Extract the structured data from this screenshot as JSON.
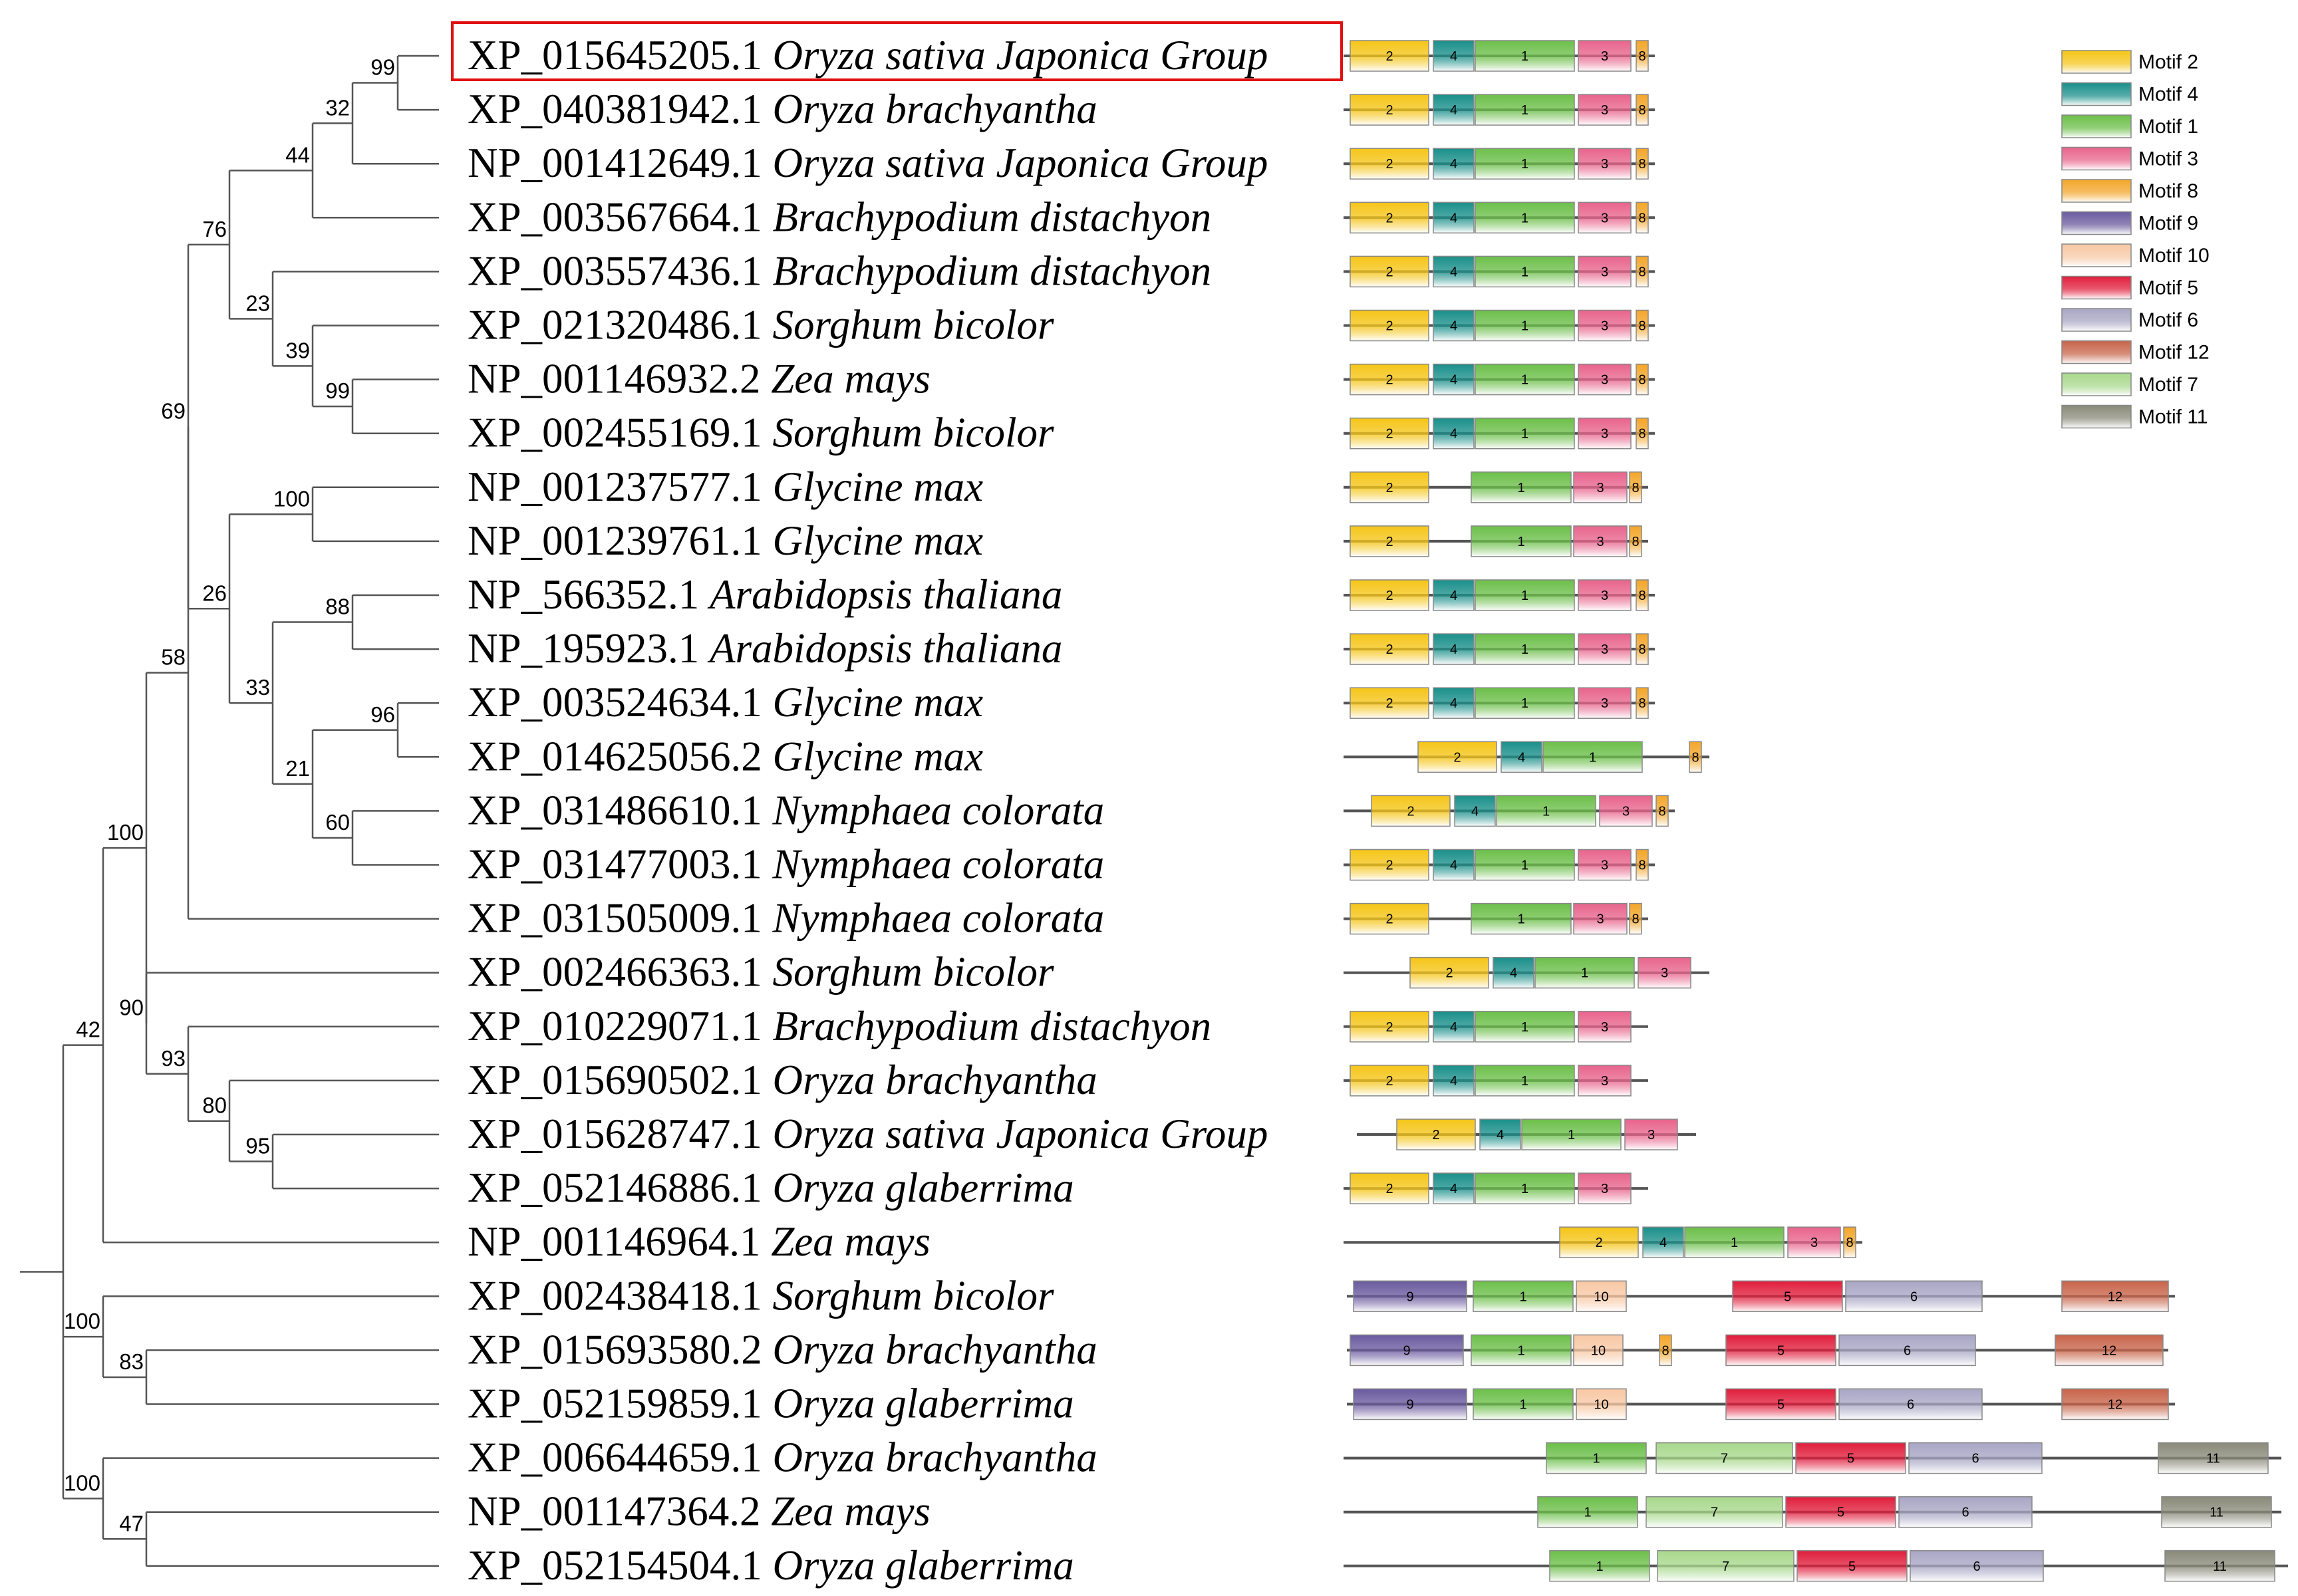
{
  "taxa": [
    {
      "acc": "XP_015645205.1",
      "sp": "Oryza sativa Japonica Group",
      "highlight": true
    },
    {
      "acc": "XP_040381942.1",
      "sp": "Oryza brachyantha"
    },
    {
      "acc": "NP_001412649.1",
      "sp": "Oryza sativa Japonica Group"
    },
    {
      "acc": "XP_003567664.1",
      "sp": "Brachypodium distachyon"
    },
    {
      "acc": "XP_003557436.1",
      "sp": "Brachypodium distachyon"
    },
    {
      "acc": "XP_021320486.1",
      "sp": "Sorghum bicolor"
    },
    {
      "acc": "NP_001146932.2",
      "sp": "Zea mays"
    },
    {
      "acc": "XP_002455169.1",
      "sp": "Sorghum bicolor"
    },
    {
      "acc": "NP_001237577.1",
      "sp": "Glycine max"
    },
    {
      "acc": "NP_001239761.1",
      "sp": "Glycine max"
    },
    {
      "acc": "NP_566352.1",
      "sp": "Arabidopsis thaliana"
    },
    {
      "acc": "NP_195923.1",
      "sp": "Arabidopsis thaliana"
    },
    {
      "acc": "XP_003524634.1",
      "sp": "Glycine max"
    },
    {
      "acc": "XP_014625056.2",
      "sp": "Glycine max"
    },
    {
      "acc": "XP_031486610.1",
      "sp": "Nymphaea colorata"
    },
    {
      "acc": "XP_031477003.1",
      "sp": "Nymphaea colorata"
    },
    {
      "acc": "XP_031505009.1",
      "sp": "Nymphaea colorata"
    },
    {
      "acc": "XP_002466363.1",
      "sp": "Sorghum bicolor"
    },
    {
      "acc": "XP_010229071.1",
      "sp": "Brachypodium distachyon"
    },
    {
      "acc": "XP_015690502.1",
      "sp": "Oryza brachyantha"
    },
    {
      "acc": "XP_015628747.1",
      "sp": "Oryza sativa Japonica Group"
    },
    {
      "acc": "XP_052146886.1",
      "sp": "Oryza glaberrima"
    },
    {
      "acc": "NP_001146964.1",
      "sp": "Zea mays"
    },
    {
      "acc": "XP_002438418.1",
      "sp": "Sorghum bicolor"
    },
    {
      "acc": "XP_015693580.2",
      "sp": "Oryza brachyantha"
    },
    {
      "acc": "XP_052159859.1",
      "sp": "Oryza glaberrima"
    },
    {
      "acc": "XP_006644659.1",
      "sp": "Oryza brachyantha"
    },
    {
      "acc": "NP_001147364.2",
      "sp": "Zea mays"
    },
    {
      "acc": "XP_052154504.1",
      "sp": "Oryza glaberrima"
    }
  ],
  "bootstrap_values": [
    "99",
    "32",
    "44",
    "76",
    "23",
    "39",
    "99",
    "69",
    "100",
    "26",
    "88",
    "33",
    "96",
    "21",
    "60",
    "58",
    "100",
    "90",
    "93",
    "80",
    "95",
    "42",
    "100",
    "83",
    "100",
    "47"
  ],
  "legend": [
    {
      "label": "Motif 2",
      "motif": "2",
      "color": "#f5c518"
    },
    {
      "label": "Motif 4",
      "motif": "4",
      "color": "#1a8f8a"
    },
    {
      "label": "Motif 1",
      "motif": "1",
      "color": "#6cbf4a"
    },
    {
      "label": "Motif 3",
      "motif": "3",
      "color": "#e8648c"
    },
    {
      "label": "Motif 8",
      "motif": "8",
      "color": "#f3a62a"
    },
    {
      "label": "Motif 9",
      "motif": "9",
      "color": "#6a5a9e"
    },
    {
      "label": "Motif 10",
      "motif": "10",
      "color": "#f8c8a4"
    },
    {
      "label": "Motif 5",
      "motif": "5",
      "color": "#e01e3c"
    },
    {
      "label": "Motif 6",
      "motif": "6",
      "color": "#a8a6c4"
    },
    {
      "label": "Motif 12",
      "motif": "12",
      "color": "#c8644a"
    },
    {
      "label": "Motif 7",
      "motif": "7",
      "color": "#a8d88c"
    },
    {
      "label": "Motif 11",
      "motif": "11",
      "color": "#8a8a7a"
    }
  ]
}
